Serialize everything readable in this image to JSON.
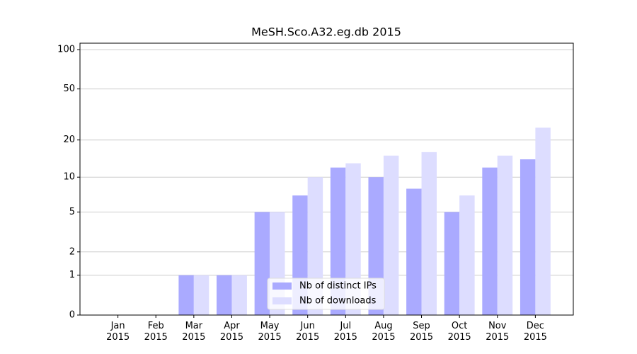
{
  "chart_data": {
    "type": "bar",
    "title": "MeSH.Sco.A32.eg.db 2015",
    "categories": [
      "Jan 2015",
      "Feb 2015",
      "Mar 2015",
      "Apr 2015",
      "May 2015",
      "Jun 2015",
      "Jul 2015",
      "Aug 2015",
      "Sep 2015",
      "Oct 2015",
      "Nov 2015",
      "Dec 2015"
    ],
    "series": [
      {
        "name": "Nb of distinct IPs",
        "color": "#aaaaff",
        "values": [
          0,
          0,
          1,
          1,
          5,
          7,
          12,
          10,
          8,
          5,
          12,
          14
        ]
      },
      {
        "name": "Nb of downloads",
        "color": "#ddddff",
        "values": [
          0,
          0,
          1,
          1,
          5,
          10,
          13,
          15,
          16,
          7,
          15,
          25
        ]
      }
    ],
    "yscale": "log1p",
    "ylim": [
      0,
      112
    ],
    "yticks": [
      0,
      1,
      2,
      5,
      10,
      20,
      50,
      100
    ],
    "grid": true,
    "legend": "lower center"
  }
}
